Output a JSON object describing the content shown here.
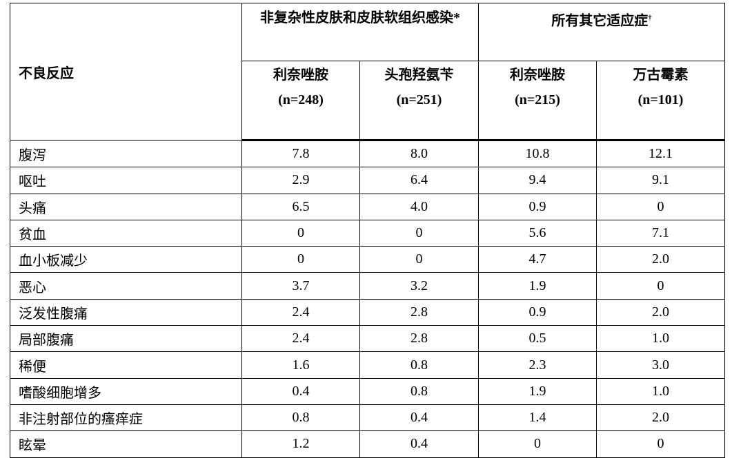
{
  "table": {
    "row_header": "不良反应",
    "groups": [
      {
        "title": "非复杂性皮肤和皮肤软组织感染*"
      },
      {
        "title": "所有其它适应症",
        "note_mark": "†"
      }
    ],
    "columns": [
      {
        "name": "利奈唑胺",
        "n": "(n=248)"
      },
      {
        "name": "头孢羟氨苄",
        "n": "(n=251)"
      },
      {
        "name": "利奈唑胺",
        "n": "(n=215)"
      },
      {
        "name": "万古霉素",
        "n": "(n=101)"
      }
    ],
    "rows": [
      [
        "腹泻",
        "7.8",
        "8.0",
        "10.8",
        "12.1"
      ],
      [
        "呕吐",
        "2.9",
        "6.4",
        "9.4",
        "9.1"
      ],
      [
        "头痛",
        "6.5",
        "4.0",
        "0.9",
        "0"
      ],
      [
        "贫血",
        "0",
        "0",
        "5.6",
        "7.1"
      ],
      [
        "血小板减少",
        "0",
        "0",
        "4.7",
        "2.0"
      ],
      [
        "恶心",
        "3.7",
        "3.2",
        "1.9",
        "0"
      ],
      [
        "泛发性腹痛",
        "2.4",
        "2.8",
        "0.9",
        "2.0"
      ],
      [
        "局部腹痛",
        "2.4",
        "2.8",
        "0.5",
        "1.0"
      ],
      [
        "稀便",
        "1.6",
        "0.8",
        "2.3",
        "3.0"
      ],
      [
        "嗜酸细胞增多",
        "0.4",
        "0.8",
        "1.9",
        "1.0"
      ],
      [
        "非注射部位的瘙痒症",
        "0.8",
        "0.4",
        "1.4",
        "2.0"
      ],
      [
        "眩晕",
        "1.2",
        "0.4",
        "0",
        "0"
      ]
    ]
  }
}
